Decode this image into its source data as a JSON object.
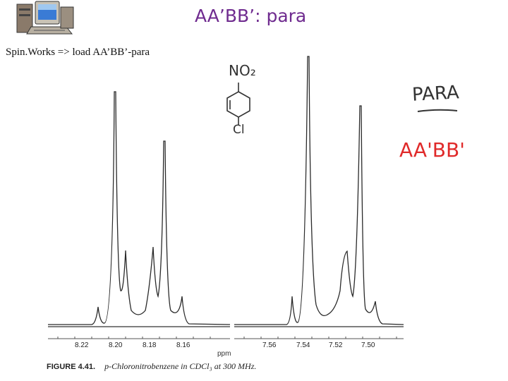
{
  "slide": {
    "title": "AA’BB’: para",
    "subtitle": "Spin.Works => load AA’BB’-para"
  },
  "icons": {
    "computer": "desktop-computer-icon"
  },
  "spectrum": {
    "left_ticks": [
      "8.22",
      "8.20",
      "8.18",
      "8.16"
    ],
    "right_ticks": [
      "7.56",
      "7.54",
      "7.52",
      "7.50"
    ],
    "axis_unit": "ppm"
  },
  "caption": {
    "figure_label": "FIGURE 4.41.",
    "text": "p-Chloronitrobenzene in CDCl₃ at 300 MHz."
  },
  "annotations": {
    "structure_top": "NO₂",
    "structure_bottom": "Cl",
    "para_note": "PARA",
    "pattern_note": "AA'BB'"
  },
  "colors": {
    "title": "#6f2b8f",
    "pattern_note": "#e02a2a",
    "ink": "#222222"
  }
}
